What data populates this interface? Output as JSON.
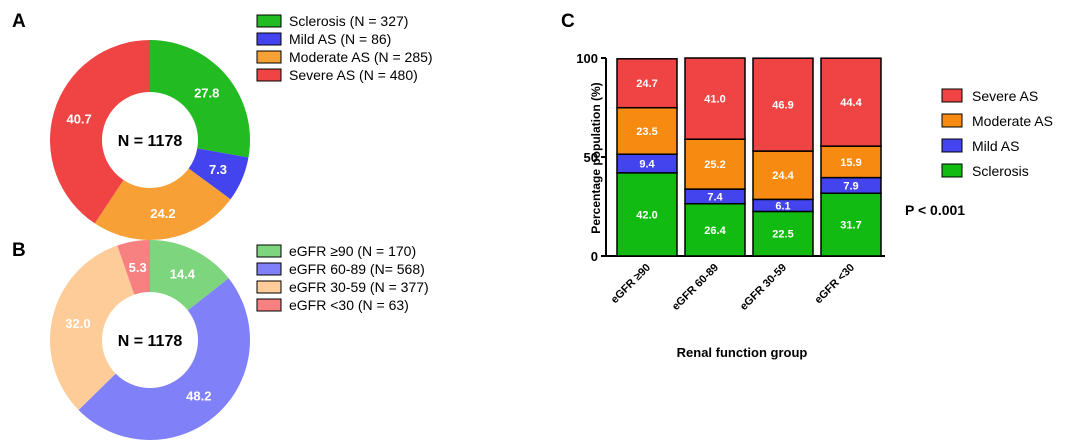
{
  "chart_data": [
    {
      "panel": "A",
      "type": "pie",
      "center_label": "N = 1178",
      "categories": [
        "Sclerosis (N = 327)",
        "Mild AS (N = 86)",
        "Moderate AS (N = 285)",
        "Severe AS (N = 480)"
      ],
      "values": [
        27.8,
        7.3,
        24.2,
        40.7
      ],
      "value_labels": [
        "27.8",
        "7.3",
        "24.2",
        "40.7"
      ],
      "colors": [
        "#22bb22",
        "#4444ee",
        "#f7a035",
        "#f04444"
      ],
      "legend_placement": "right"
    },
    {
      "panel": "B",
      "type": "pie",
      "center_label": "N = 1178",
      "categories": [
        "eGFR ≥90 (N = 170)",
        "eGFR 60-89 (N= 568)",
        "eGFR 30-59 (N = 377)",
        "eGFR <30 (N = 63)"
      ],
      "values": [
        14.4,
        48.2,
        32.0,
        5.3
      ],
      "value_labels": [
        "14.4",
        "48.2",
        "32.0",
        "5.3"
      ],
      "colors": [
        "#7dd67d",
        "#8080f8",
        "#fdcc99",
        "#f78080"
      ],
      "legend_placement": "right"
    },
    {
      "panel": "C",
      "type": "bar",
      "stacked": true,
      "categories": [
        "eGFR ≥90",
        "eGFR 60-89",
        "eGFR 30-59",
        "eGFR <30"
      ],
      "series": [
        {
          "name": "Sclerosis",
          "values": [
            42.0,
            26.4,
            22.5,
            31.7
          ],
          "labels": [
            "42.0",
            "26.4",
            "22.5",
            "31.7"
          ],
          "color": "#11bb11"
        },
        {
          "name": "Mild AS",
          "values": [
            9.4,
            7.4,
            6.1,
            7.9
          ],
          "labels": [
            "9.4",
            "7.4",
            "6.1",
            "7.9"
          ],
          "color": "#4444ee"
        },
        {
          "name": "Moderate AS",
          "values": [
            23.5,
            25.2,
            24.4,
            15.9
          ],
          "labels": [
            "23.5",
            "25.2",
            "24.4",
            "15.9"
          ],
          "color": "#f78a10"
        },
        {
          "name": "Severe AS",
          "values": [
            24.7,
            41.0,
            46.9,
            44.4
          ],
          "labels": [
            "24.7",
            "41.0",
            "46.9",
            "44.4"
          ],
          "color": "#f04444"
        }
      ],
      "legend_order": [
        "Severe AS",
        "Moderate AS",
        "Mild AS",
        "Sclerosis"
      ],
      "xlabel": "Renal function group",
      "ylabel": "Percentage population (%)",
      "yticks": [
        "0",
        "50",
        "100"
      ],
      "ylim": [
        0,
        100
      ],
      "annotation": "P < 0.001",
      "legend_placement": "right"
    }
  ],
  "panel_letters": {
    "a": "A",
    "b": "B",
    "c": "C"
  }
}
